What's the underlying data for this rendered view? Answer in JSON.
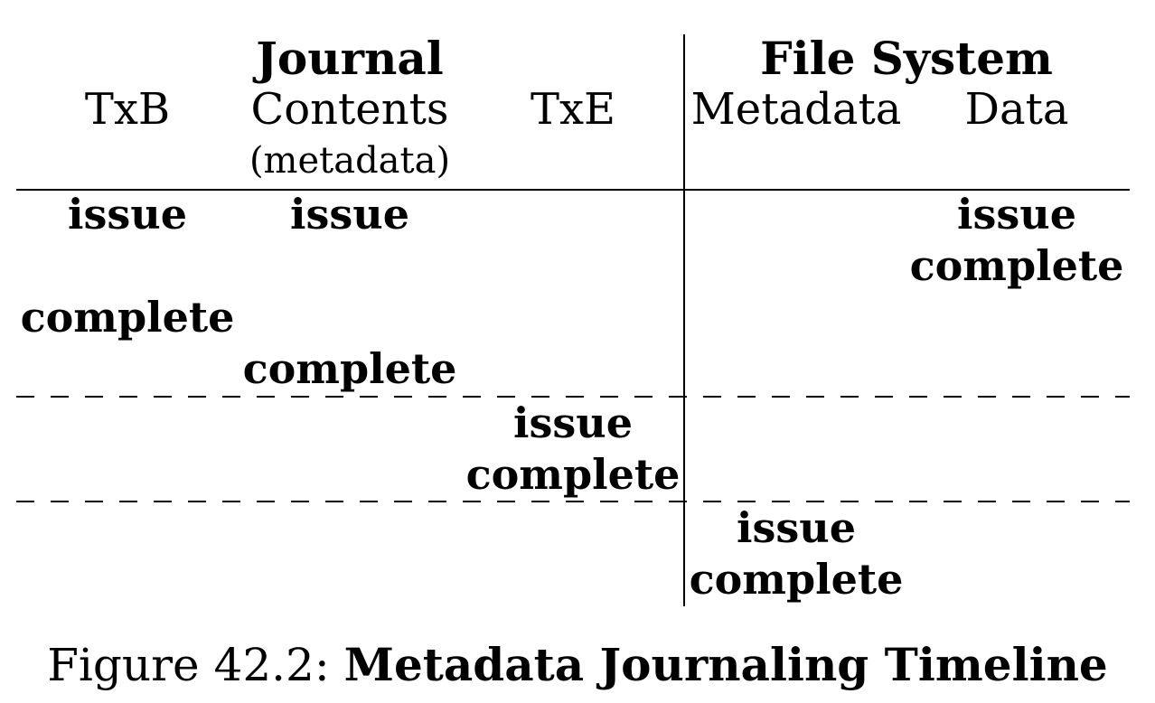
{
  "groups": {
    "journal": "Journal",
    "file_system": "File System"
  },
  "columns": {
    "txb": "TxB",
    "contents": "Contents",
    "contents_sub": "(metadata)",
    "txe": "TxE",
    "metadata": "Metadata",
    "data": "Data"
  },
  "events": {
    "txb_issue": "issue",
    "txb_complete": "complete",
    "contents_issue": "issue",
    "contents_complete": "complete",
    "data_issue": "issue",
    "data_complete": "complete",
    "txe_issue": "issue",
    "txe_complete": "complete",
    "metadata_issue": "issue",
    "metadata_complete": "complete"
  },
  "caption": {
    "prefix": "Figure 42.2: ",
    "title": "Metadata Journaling Timeline"
  }
}
